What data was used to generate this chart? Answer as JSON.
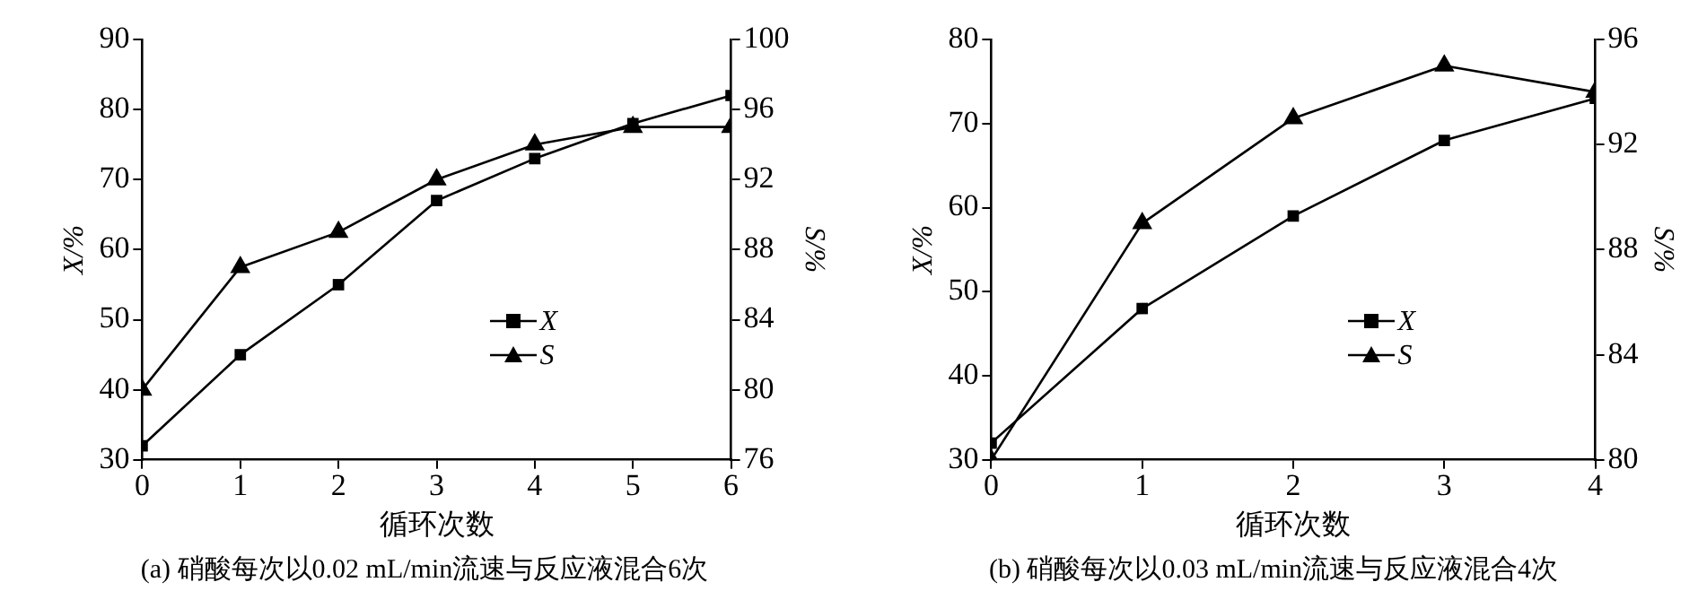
{
  "chart_data": [
    {
      "type": "line",
      "xlabel": "循环次数",
      "ylabel": "X/%",
      "y2label": "S/%",
      "annotations": [
        "(a) 硝酸每次以0.02 mL/min流速与反应液混合6次"
      ],
      "x": [
        0,
        1,
        2,
        3,
        4,
        5,
        6
      ],
      "xlim": [
        0,
        6
      ],
      "xticks": [
        0,
        1,
        2,
        3,
        4,
        5,
        6
      ],
      "ylim": [
        30,
        90
      ],
      "yticks": [
        30,
        40,
        50,
        60,
        70,
        80,
        90
      ],
      "y2lim": [
        76,
        100
      ],
      "y2ticks": [
        76,
        80,
        84,
        88,
        92,
        96,
        100
      ],
      "grid": false,
      "legend": "center right",
      "series": [
        {
          "name": "X",
          "color": "#000000",
          "marker": "square",
          "values": [
            32,
            45,
            55,
            67,
            73,
            78,
            82
          ]
        },
        {
          "name": "S",
          "color": "#000000",
          "marker": "triangle",
          "axis": "y2",
          "values": [
            80,
            87,
            89,
            92,
            94,
            95,
            95
          ]
        }
      ]
    },
    {
      "type": "line",
      "xlabel": "循环次数",
      "ylabel": "X/%",
      "y2label": "S/%",
      "annotations": [
        "(b) 硝酸每次以0.03 mL/min流速与反应液混合4次"
      ],
      "x": [
        0,
        1,
        2,
        3,
        4
      ],
      "xlim": [
        0,
        4
      ],
      "xticks": [
        0,
        1,
        2,
        3,
        4
      ],
      "ylim": [
        30,
        80
      ],
      "yticks": [
        30,
        40,
        50,
        60,
        70,
        80
      ],
      "y2lim": [
        80,
        96
      ],
      "y2ticks": [
        80,
        84,
        88,
        92,
        96
      ],
      "grid": false,
      "legend": "center right",
      "series": [
        {
          "name": "X",
          "color": "#000000",
          "marker": "square",
          "values": [
            32,
            48,
            59,
            68,
            73
          ]
        },
        {
          "name": "S",
          "color": "#000000",
          "marker": "triangle",
          "axis": "y2",
          "values": [
            80,
            89,
            93,
            95,
            94
          ]
        }
      ]
    }
  ]
}
